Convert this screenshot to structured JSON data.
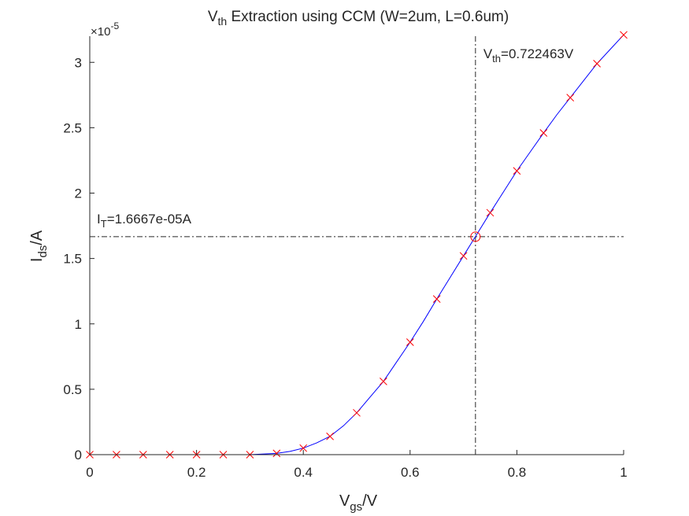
{
  "chart_data": {
    "type": "line",
    "title": {
      "base": "V",
      "sub": "th",
      "rest": " Extraction using CCM (W=2um, L=0.6um)"
    },
    "xlabel": {
      "base": "V",
      "sub": "gs",
      "rest": "/V"
    },
    "ylabel": {
      "base": "I",
      "sub": "ds",
      "rest": "/A"
    },
    "y_exponent": {
      "mult": "×10",
      "exp": "-5"
    },
    "xlim": [
      0,
      1
    ],
    "ylim": [
      0,
      3.2
    ],
    "y_scale_factor": 1e-05,
    "x_ticks": [
      0,
      0.2,
      0.4,
      0.6,
      0.8,
      1
    ],
    "x_tick_labels": [
      "0",
      "0.2",
      "0.4",
      "0.6",
      "0.8",
      "1"
    ],
    "y_ticks": [
      0,
      0.5,
      1,
      1.5,
      2,
      2.5,
      3
    ],
    "y_tick_labels": [
      "0",
      "0.5",
      "1",
      "1.5",
      "2",
      "2.5",
      "3"
    ],
    "series": [
      {
        "style": "markers",
        "marker": "x",
        "color": "#ff0000",
        "x": [
          0,
          0.05,
          0.1,
          0.15,
          0.2,
          0.25,
          0.3,
          0.35,
          0.4,
          0.45,
          0.5,
          0.55,
          0.6,
          0.65,
          0.7,
          0.75,
          0.8,
          0.85,
          0.9,
          0.95,
          1.0
        ],
        "y": [
          0,
          0,
          0,
          0,
          0,
          0,
          0,
          0.01,
          0.05,
          0.14,
          0.32,
          0.56,
          0.86,
          1.19,
          1.52,
          1.85,
          2.17,
          2.46,
          2.73,
          2.99,
          3.21
        ]
      },
      {
        "style": "line",
        "color": "#0000ff",
        "x": [
          0,
          0.3,
          0.35,
          0.375,
          0.4,
          0.425,
          0.45,
          0.475,
          0.5,
          0.525,
          0.55,
          0.575,
          0.6,
          0.625,
          0.65,
          0.675,
          0.7,
          0.725,
          0.75,
          0.775,
          0.8,
          0.825,
          0.85,
          0.875,
          0.9,
          0.925,
          0.95,
          0.975,
          1.0
        ],
        "y": [
          0,
          0,
          0.01,
          0.025,
          0.05,
          0.09,
          0.14,
          0.22,
          0.32,
          0.44,
          0.56,
          0.71,
          0.86,
          1.02,
          1.19,
          1.355,
          1.52,
          1.685,
          1.85,
          2.01,
          2.17,
          2.315,
          2.46,
          2.6,
          2.73,
          2.86,
          2.99,
          3.1,
          3.21
        ]
      }
    ],
    "vth": {
      "x": 0.722463,
      "label_base": "V",
      "label_sub": "th",
      "label_rest": "=0.722463V"
    },
    "it": {
      "y": 1.6667,
      "label_base": "I",
      "label_sub": "T",
      "label_rest": "=1.6667e-05A"
    },
    "colors": {
      "line": "#0000ff",
      "marker": "#ff0000",
      "ref_line": "#262626",
      "axis": "#262626"
    }
  }
}
